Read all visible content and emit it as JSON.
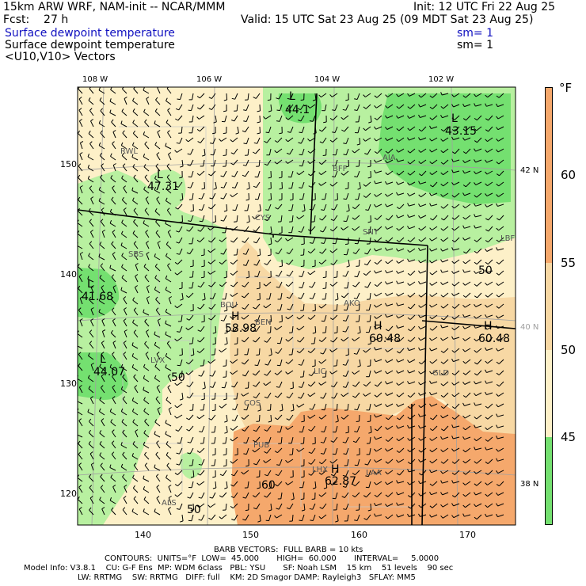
{
  "header": {
    "title": "15km ARW WRF, NAM-init -- NCAR/MMM",
    "init": "Init: 12 UTC Fri 22 Aug 25",
    "fcst": "Fcst:    27 h",
    "valid": "Valid: 15 UTC Sat 23 Aug 25 (09 MDT Sat 23 Aug 25)",
    "field1": "Surface dewpoint temperature",
    "field1_sm": "sm= 1",
    "field2": "Surface dewpoint temperature",
    "field2_sm": "sm= 1",
    "field3": "<U10,V10> Vectors"
  },
  "map": {
    "lon_labels": [
      "108 W",
      "106 W",
      "104 W",
      "102 W"
    ],
    "lat_labels": [
      "42 N",
      "40 N",
      "38 N"
    ],
    "x_ticks": [
      "140",
      "150",
      "160",
      "170"
    ],
    "y_ticks": [
      "150",
      "140",
      "130",
      "120"
    ],
    "stations": [
      "RWL",
      "BFF",
      "AIA",
      "CYS",
      "SNY",
      "LBF",
      "SBS",
      "BOU",
      "BEN",
      "AKO",
      "LIC",
      "GLD",
      "COS",
      "PUB",
      "LHX",
      "LAA",
      "ALS",
      "LVX"
    ],
    "extrema": [
      {
        "type": "L",
        "value": "44.1"
      },
      {
        "type": "L",
        "value": "43.15"
      },
      {
        "type": "L",
        "value": "47.31"
      },
      {
        "type": "L",
        "value": "41.68"
      },
      {
        "type": "L",
        "value": "44.07"
      },
      {
        "type": "H",
        "value": "58.98"
      },
      {
        "type": "H",
        "value": "60.48"
      },
      {
        "type": "H",
        "value": "60.48"
      },
      {
        "type": "H",
        "value": "62.87"
      }
    ],
    "contour_labels": [
      "50",
      "50",
      "60",
      "50"
    ]
  },
  "colorbar": {
    "unit": "°F",
    "levels": [
      "60",
      "55",
      "50",
      "45"
    ],
    "colors": [
      "#f5a86c",
      "#f7d8a4",
      "#fdf0c8",
      "#b8f0a0",
      "#74e070"
    ]
  },
  "footer": {
    "line1": "BARB VECTORS:  FULL BARB = 10 kts",
    "line2": "CONTOURS:  UNITS=°F  LOW=  45.000       HIGH=  60.000       INTERVAL=     5.0000",
    "line3": "Model Info: V3.8.1    CU: G-F Ens  MP: WDM 6class   PBL: YSU       SF: Noah LSM    15 km    51 levels    90 sec",
    "line4": "LW: RRTMG    SW: RRTMG   DIFF: full    KM: 2D Smagor DAMP: Rayleigh3   SFLAY: MM5"
  }
}
